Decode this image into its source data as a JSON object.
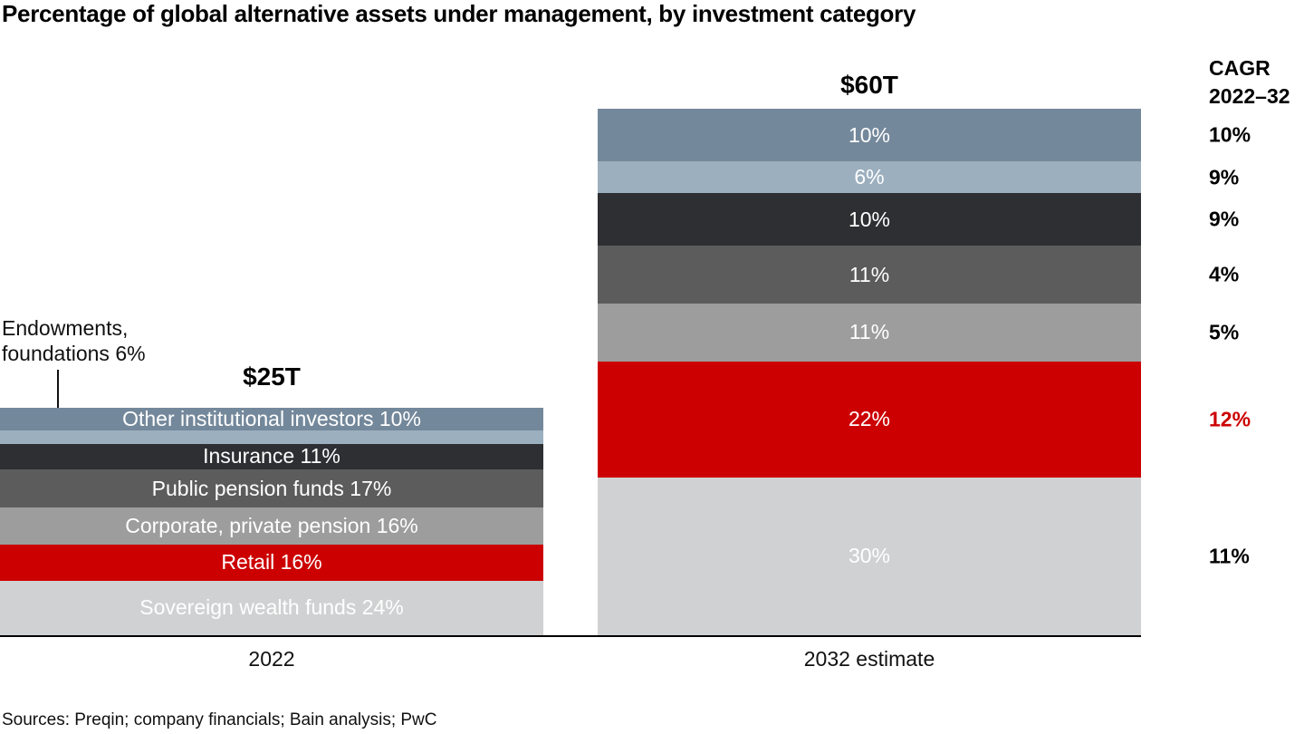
{
  "title": "Percentage of global alternative assets under management, by investment category",
  "annotation": {
    "line1": "Endowments,",
    "line2": "foundations 6%"
  },
  "sources": "Sources: Preqin; company financials; Bain analysis; PwC",
  "chart_data": {
    "type": "bar",
    "subtype": "stacked-percentage-columns",
    "title": "Percentage of global alternative assets under management, by investment category",
    "stack_categories": [
      "Other institutional investors",
      "Endowments, foundations",
      "Insurance",
      "Public pension funds",
      "Corporate, private pension",
      "Retail",
      "Sovereign wealth funds"
    ],
    "colors": [
      "#74889b",
      "#9cafbf",
      "#2d2f32",
      "#5c5c5c",
      "#9d9d9d",
      "#cc0000",
      "#d0d1d2"
    ],
    "label_text_color": "#ffffff",
    "series": [
      {
        "name": "2022",
        "total_label": "$25T",
        "total_usd_trillions": 25,
        "values_pct": [
          10,
          6,
          11,
          17,
          16,
          16,
          24
        ],
        "segment_labels": [
          "Other institutional investors 10%",
          "",
          "Insurance 11%",
          "Public pension funds 17%",
          "Corporate, private pension 16%",
          "Retail 16%",
          "Sovereign wealth funds 24%"
        ]
      },
      {
        "name": "2032 estimate",
        "total_label": "$60T",
        "total_usd_trillions": 60,
        "values_pct": [
          10,
          6,
          10,
          11,
          11,
          22,
          30
        ],
        "segment_labels": [
          "10%",
          "6%",
          "10%",
          "11%",
          "11%",
          "22%",
          "30%"
        ]
      }
    ],
    "cagr": {
      "header_line1": "CAGR",
      "header_line2": "2022–32",
      "values": [
        "10%",
        "9%",
        "9%",
        "4%",
        "5%",
        "12%",
        "11%"
      ],
      "highlight_index": 5,
      "highlight_color": "#cc0000",
      "text_color": "#000000"
    },
    "axis": {
      "x_labels": [
        "2022",
        "2032 estimate"
      ],
      "baseline_color": "#000000"
    },
    "legend": "none"
  }
}
